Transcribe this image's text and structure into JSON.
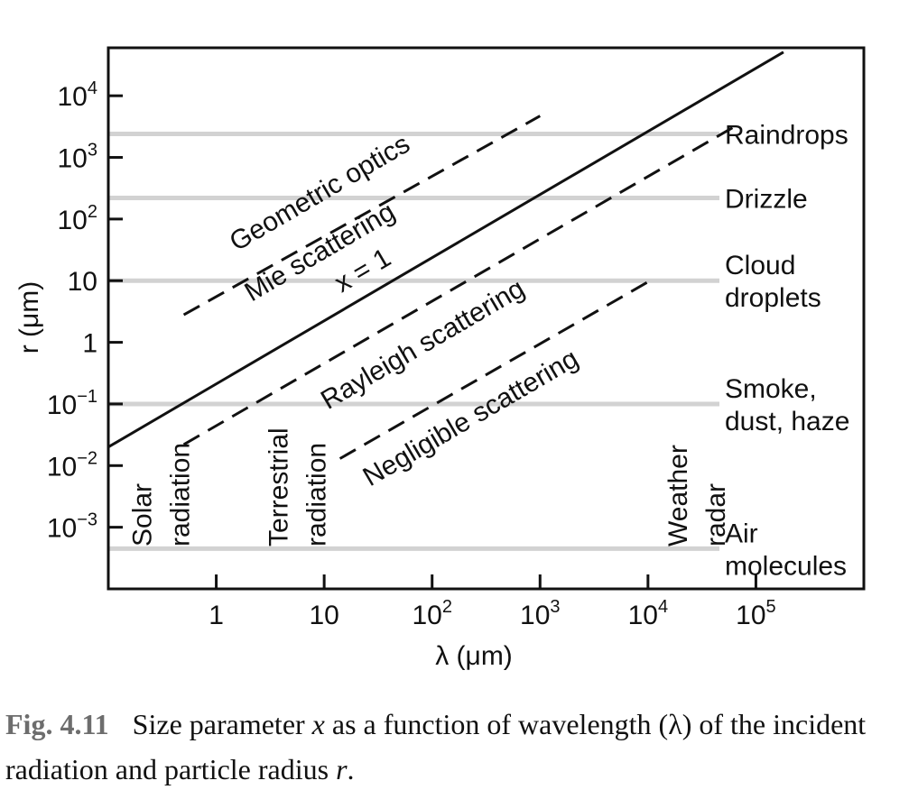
{
  "chart_data": {
    "type": "line",
    "xlabel": "λ (μm)",
    "ylabel": "r (μm)",
    "x_scale": "log",
    "y_scale": "log",
    "xlim": [
      0.1,
      1000000
    ],
    "ylim": [
      0.0001,
      60000
    ],
    "xticks": [
      {
        "v": 1,
        "m": "1",
        "e": ""
      },
      {
        "v": 10,
        "m": "10",
        "e": ""
      },
      {
        "v": 100,
        "m": "10",
        "e": "2"
      },
      {
        "v": 1000,
        "m": "10",
        "e": "3"
      },
      {
        "v": 10000,
        "m": "10",
        "e": "4"
      },
      {
        "v": 100000,
        "m": "10",
        "e": "5"
      }
    ],
    "yticks": [
      {
        "v": 0.001,
        "m": "10",
        "e": "−3"
      },
      {
        "v": 0.01,
        "m": "10",
        "e": "−2"
      },
      {
        "v": 0.1,
        "m": "10",
        "e": "−1"
      },
      {
        "v": 1,
        "m": "1",
        "e": ""
      },
      {
        "v": 10,
        "m": "10",
        "e": ""
      },
      {
        "v": 100,
        "m": "10",
        "e": "2"
      },
      {
        "v": 1000,
        "m": "10",
        "e": "3"
      },
      {
        "v": 10000,
        "m": "10",
        "e": "4"
      }
    ],
    "series": [
      {
        "dash": "solid",
        "x": [
          0.1,
          180000
        ],
        "y": [
          0.02,
          51000
        ]
      },
      {
        "dash": "dashed",
        "x": [
          0.5,
          1000
        ],
        "y": [
          2.8,
          4700
        ]
      },
      {
        "dash": "dashed",
        "x": [
          0.5,
          70000
        ],
        "y": [
          0.022,
          3500
        ]
      },
      {
        "dash": "dashed",
        "x": [
          14,
          11000
        ],
        "y": [
          0.013,
          10.5
        ]
      }
    ],
    "bands": [
      {
        "r": 0.00045,
        "lines": [
          "Air",
          "molecules"
        ]
      },
      {
        "r": 0.1,
        "lines": [
          "Smoke,",
          "dust, haze"
        ]
      },
      {
        "r": 10,
        "lines": [
          "Cloud",
          "droplets"
        ]
      },
      {
        "r": 220,
        "lines": [
          "Drizzle"
        ]
      },
      {
        "r": 2400,
        "lines": [
          "Raindrops"
        ]
      }
    ],
    "regions": [
      {
        "text": "Geometric optics",
        "x": 10,
        "y": 200
      },
      {
        "text": "Mie scattering",
        "x": 10,
        "y": 22
      },
      {
        "text": "x = 1",
        "x": 25,
        "y": 11
      },
      {
        "text": "Rayleigh scattering",
        "x": 90,
        "y": 0.7
      },
      {
        "text": "Negligible scattering",
        "x": 250,
        "y": 0.045
      }
    ],
    "vertical_labels": [
      {
        "lines": [
          "Solar",
          "radiation"
        ],
        "x": 0.38
      },
      {
        "lines": [
          "Terrestrial",
          "radiation"
        ],
        "x": 7
      },
      {
        "lines": [
          "Weather",
          "radar"
        ],
        "x": 35000
      }
    ]
  },
  "caption": {
    "fig": "Fig. 4.11",
    "part1": "Size parameter ",
    "var_x": "x",
    "part2": " as a function of wavelength (λ) of the incident radiation and particle radius ",
    "var_r": "r",
    "part3": "."
  }
}
